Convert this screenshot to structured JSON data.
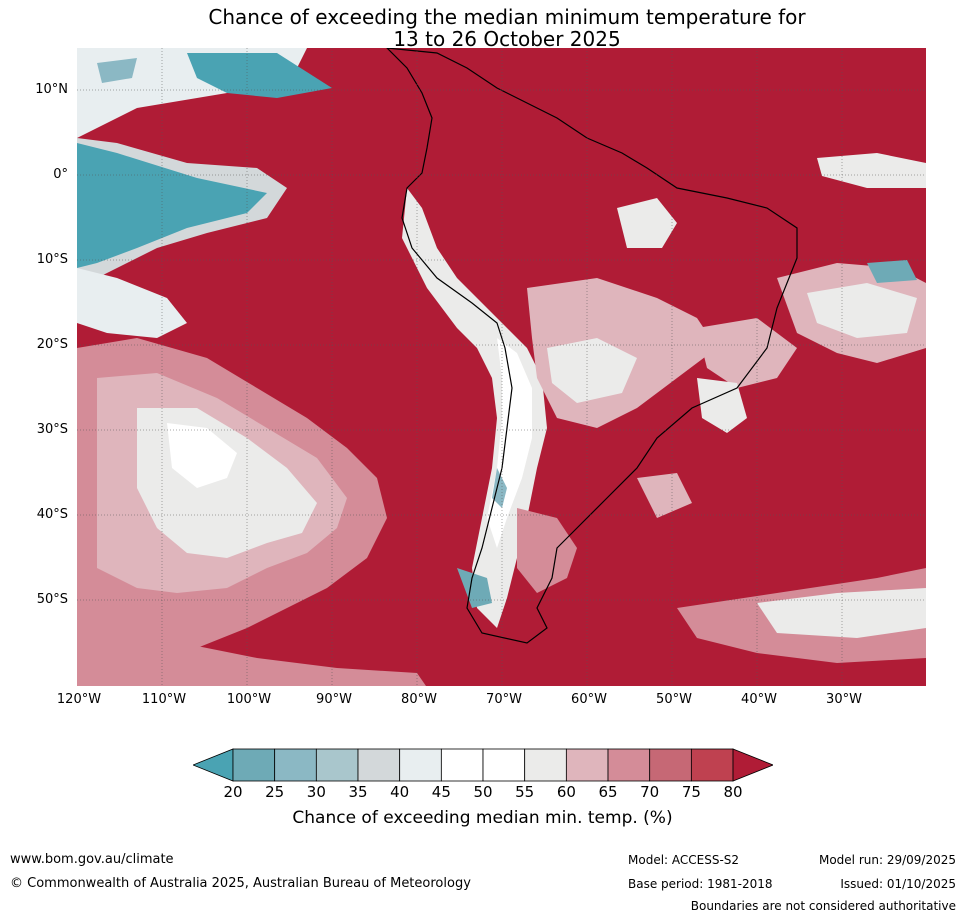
{
  "title": {
    "line1": "Chance of exceeding the median minimum temperature for",
    "line2": "13 to 26 October 2025"
  },
  "map": {
    "region": "South America and surrounding oceans",
    "lat_labels": [
      "10°N",
      "0°",
      "10°S",
      "20°S",
      "30°S",
      "40°S",
      "50°S"
    ],
    "lon_labels": [
      "120°W",
      "110°W",
      "100°W",
      "90°W",
      "80°W",
      "70°W",
      "60°W",
      "50°W",
      "40°W",
      "30°W"
    ],
    "dominant_color": "#b01c36"
  },
  "colorbar": {
    "ticks": [
      "20",
      "25",
      "30",
      "35",
      "40",
      "45",
      "50",
      "55",
      "60",
      "65",
      "70",
      "75",
      "80"
    ],
    "colors": [
      "#4aa3b3",
      "#6eaab6",
      "#8bb8c4",
      "#a9c6cc",
      "#d3d8da",
      "#e8eef0",
      "#ffffff",
      "#ffffff",
      "#ebebea",
      "#dfb5bc",
      "#d48c98",
      "#c66875",
      "#bf4150",
      "#b01c36"
    ],
    "label": "Chance of exceeding median min. temp. (%)"
  },
  "footer": {
    "website": "www.bom.gov.au/climate",
    "copyright": "© Commonwealth of Australia 2025, Australian Bureau of Meteorology",
    "model": "Model: ACCESS-S2",
    "base_period": "Base period: 1981-2018",
    "model_run": "Model run: 29/09/2025",
    "issued": "Issued: 01/10/2025",
    "disclaimer": "Boundaries are not considered authoritative"
  }
}
